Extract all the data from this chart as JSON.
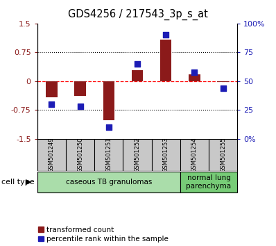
{
  "title": "GDS4256 / 217543_3p_s_at",
  "samples": [
    "GSM501249",
    "GSM501250",
    "GSM501251",
    "GSM501252",
    "GSM501253",
    "GSM501254",
    "GSM501255"
  ],
  "transformed_count": [
    -0.42,
    -0.38,
    -1.02,
    0.28,
    1.08,
    0.18,
    -0.02
  ],
  "percentile_rank_raw": [
    30,
    28,
    10,
    65,
    90,
    58,
    44
  ],
  "red_color": "#8B1A1A",
  "blue_color": "#1C1CB5",
  "ylim_left": [
    -1.5,
    1.5
  ],
  "ylim_right": [
    0,
    100
  ],
  "yticks_left": [
    -1.5,
    -0.75,
    0,
    0.75,
    1.5
  ],
  "yticks_right": [
    0,
    25,
    50,
    75,
    100
  ],
  "ytick_labels_left": [
    "-1.5",
    "-0.75",
    "0",
    "0.75",
    "1.5"
  ],
  "ytick_labels_right": [
    "0%",
    "25",
    "50",
    "75",
    "100%"
  ],
  "groups": [
    {
      "label": "caseous TB granulomas",
      "indices": [
        0,
        1,
        2,
        3,
        4
      ],
      "color": "#AADDAA"
    },
    {
      "label": "normal lung\nparenchyma",
      "indices": [
        5,
        6
      ],
      "color": "#77CC77"
    }
  ],
  "cell_type_label": "cell type",
  "legend_red": "transformed count",
  "legend_blue": "percentile rank within the sample",
  "bar_width": 0.4,
  "xtick_bg": "#C8C8C8",
  "background_color": "#ffffff"
}
